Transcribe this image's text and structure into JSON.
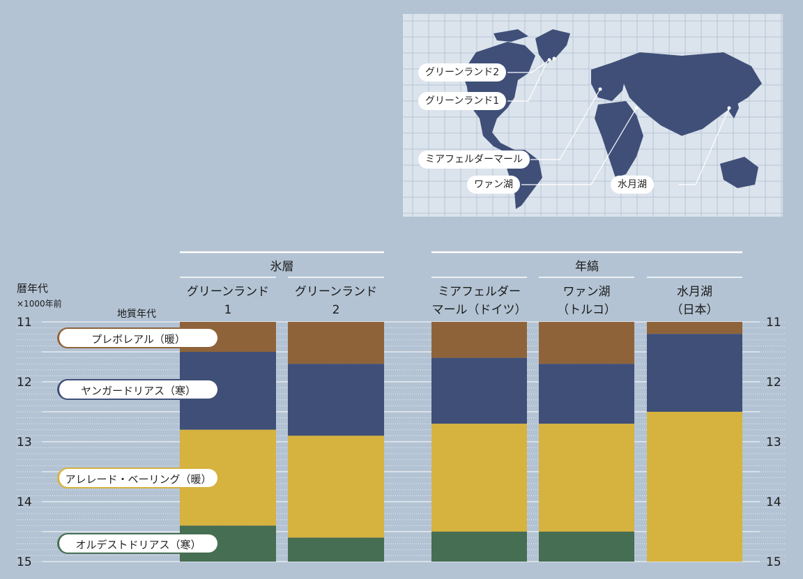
{
  "map": {
    "labels": [
      {
        "id": "greenland2",
        "text": "グリーンランド2"
      },
      {
        "id": "greenland1",
        "text": "グリーンランド1"
      },
      {
        "id": "meerfelder",
        "text": "ミアフェルダーマール"
      },
      {
        "id": "van",
        "text": "ワァン湖"
      },
      {
        "id": "suigetsu",
        "text": "水月湖"
      }
    ]
  },
  "chart_data": {
    "type": "bar",
    "y_axis_title": [
      "暦年代",
      "×1000年前"
    ],
    "geologic_axis_title": "地質年代",
    "ylim": [
      11,
      15
    ],
    "y_ticks": [
      11,
      12,
      13,
      14,
      15
    ],
    "groups": [
      {
        "label": "氷層",
        "columns": [
          0,
          1
        ]
      },
      {
        "label": "年縞",
        "columns": [
          2,
          3,
          4
        ]
      }
    ],
    "periods": [
      {
        "name": "プレボレアル（暖）",
        "color": "#8f6339",
        "border": "#8f6339"
      },
      {
        "name": "ヤンガードリアス（寒）",
        "color": "#3f4f78",
        "border": "#3f4f78"
      },
      {
        "name": "アレレード・ベーリング（暖）",
        "color": "#d6b23f",
        "border": "#d6b23f"
      },
      {
        "name": "オルデストドリアス（寒）",
        "color": "#466e52",
        "border": "#466e52"
      }
    ],
    "period_label_ages": [
      11.27,
      12.13,
      13.6,
      14.7
    ],
    "columns": [
      {
        "label": [
          "グリーンランド",
          "1"
        ],
        "segments": [
          {
            "period": 0,
            "from": 11.0,
            "to": 11.5
          },
          {
            "period": 1,
            "from": 11.5,
            "to": 12.8
          },
          {
            "period": 2,
            "from": 12.8,
            "to": 14.4
          },
          {
            "period": 3,
            "from": 14.4,
            "to": 15.0
          }
        ]
      },
      {
        "label": [
          "グリーンランド",
          "2"
        ],
        "segments": [
          {
            "period": 0,
            "from": 11.0,
            "to": 11.7
          },
          {
            "period": 1,
            "from": 11.7,
            "to": 12.9
          },
          {
            "period": 2,
            "from": 12.9,
            "to": 14.6
          },
          {
            "period": 3,
            "from": 14.6,
            "to": 15.0
          }
        ]
      },
      {
        "label": [
          "ミアフェルダー",
          "マール（ドイツ）"
        ],
        "segments": [
          {
            "period": 0,
            "from": 11.0,
            "to": 11.6
          },
          {
            "period": 1,
            "from": 11.6,
            "to": 12.7
          },
          {
            "period": 2,
            "from": 12.7,
            "to": 14.5
          },
          {
            "period": 3,
            "from": 14.5,
            "to": 15.0
          }
        ]
      },
      {
        "label": [
          "ワァン湖",
          "（トルコ）"
        ],
        "segments": [
          {
            "period": 0,
            "from": 11.0,
            "to": 11.7
          },
          {
            "period": 1,
            "from": 11.7,
            "to": 12.7
          },
          {
            "period": 2,
            "from": 12.7,
            "to": 14.5
          },
          {
            "period": 3,
            "from": 14.5,
            "to": 15.0
          }
        ]
      },
      {
        "label": [
          "水月湖",
          "（日本）"
        ],
        "segments": [
          {
            "period": 0,
            "from": 11.0,
            "to": 11.2
          },
          {
            "period": 1,
            "from": 11.2,
            "to": 12.5
          },
          {
            "period": 2,
            "from": 12.5,
            "to": 15.0
          }
        ]
      }
    ]
  }
}
